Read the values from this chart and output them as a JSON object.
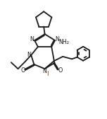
{
  "bg": "#ffffff",
  "lc": "#1a1a1a",
  "ic": "#8B4513",
  "lw": 1.3,
  "fs": 5.8,
  "figsize": [
    1.52,
    1.68
  ],
  "dpi": 100,
  "xlim": [
    -0.5,
    10.5
  ],
  "ylim": [
    -0.5,
    11.0
  ]
}
